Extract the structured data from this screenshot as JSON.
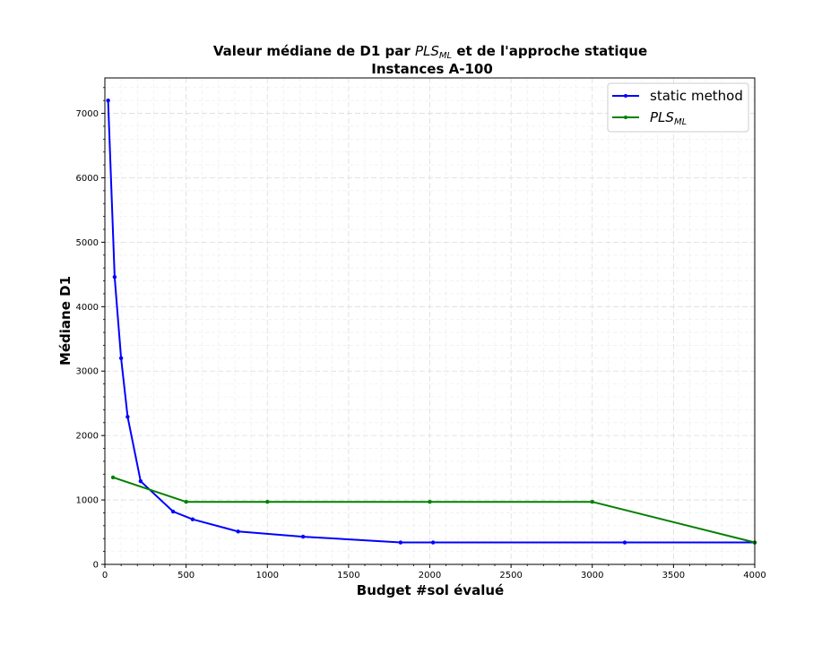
{
  "chart_data": {
    "type": "line",
    "title": {
      "line1_pre": "Valeur médiane de D1 par ",
      "line1_math": "PLS",
      "line1_math_sub": "ML",
      "line1_post": " et de l'approche statique",
      "line2": "Instances  A-100"
    },
    "xlabel": "Budget #sol évalué",
    "ylabel": "Médiane D1",
    "xlim": [
      0,
      4000
    ],
    "ylim": [
      0,
      7550
    ],
    "xticks": [
      0,
      500,
      1000,
      1500,
      2000,
      2500,
      3000,
      3500,
      4000
    ],
    "yticks": [
      0,
      1000,
      2000,
      3000,
      4000,
      5000,
      6000,
      7000
    ],
    "grid": "major and minor, dashed",
    "legend_position": "top-right",
    "series": [
      {
        "name": "static method",
        "color": "#0000ff",
        "x": [
          20,
          60,
          100,
          140,
          220,
          420,
          540,
          820,
          1220,
          1820,
          2020,
          3200,
          4000
        ],
        "y": [
          7200,
          4460,
          3200,
          2290,
          1290,
          820,
          700,
          510,
          430,
          340,
          340,
          340,
          340
        ]
      },
      {
        "name_math": "PLS",
        "name_sub": "ML",
        "color": "#008000",
        "x": [
          50,
          500,
          1000,
          2000,
          3000,
          4000
        ],
        "y": [
          1350,
          970,
          970,
          970,
          970,
          340
        ]
      }
    ]
  }
}
